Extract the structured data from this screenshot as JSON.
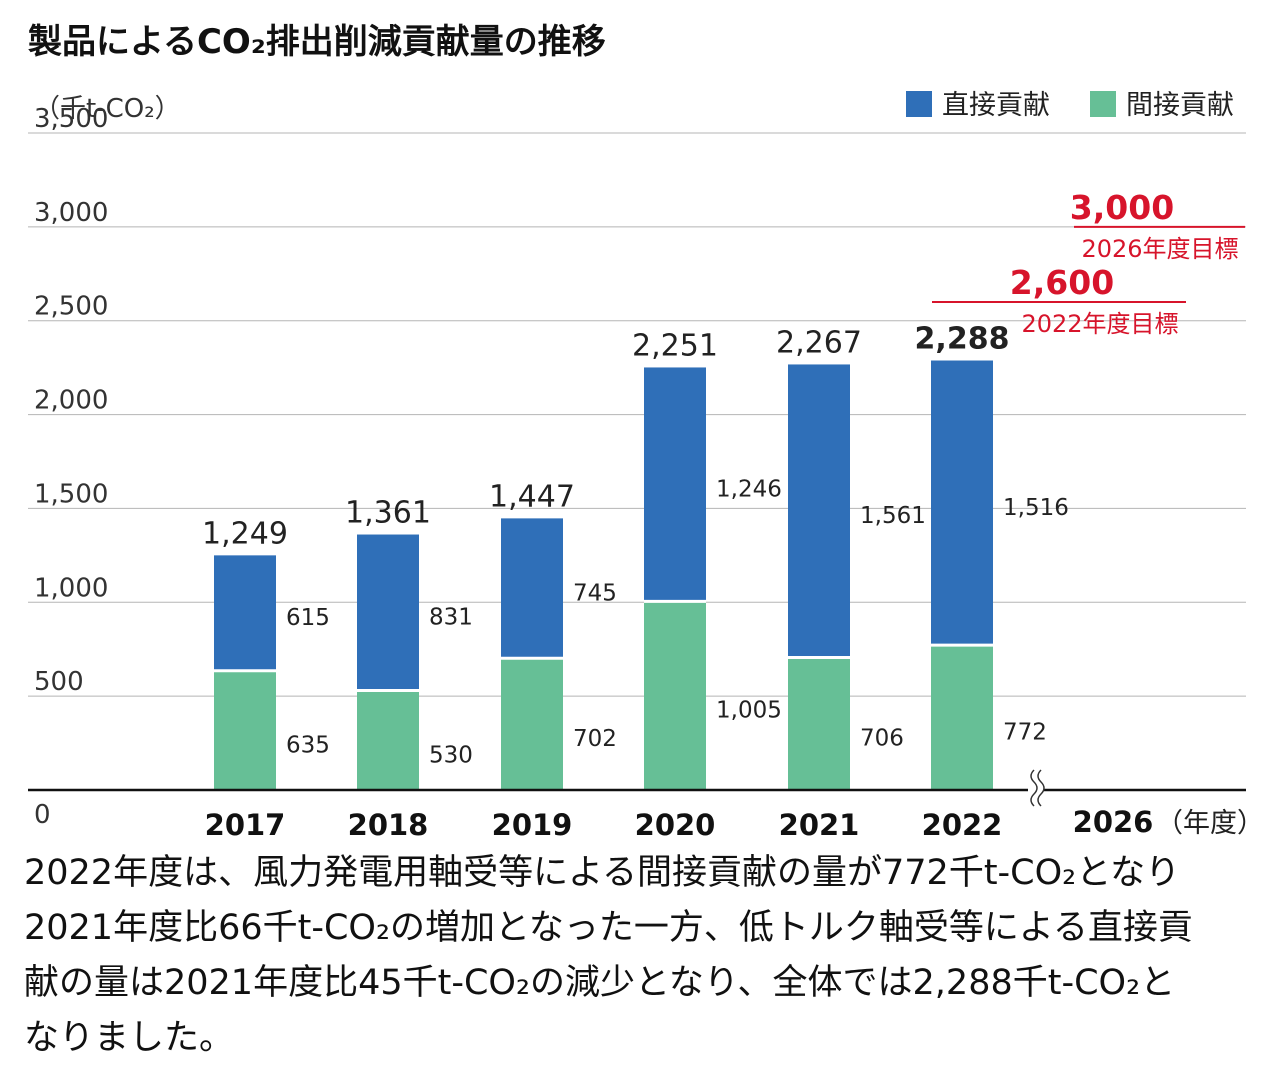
{
  "title": "製品によるCO₂排出削減貢献量の推移",
  "chart_data": {
    "type": "bar",
    "stacked": true,
    "unit_label": "（千t-CO₂）",
    "categories": [
      "2017",
      "2018",
      "2019",
      "2020",
      "2021",
      "2022"
    ],
    "extra_category": "2026",
    "x_unit_label": "（年度）",
    "ylim": [
      0,
      3500
    ],
    "yticks": [
      {
        "value": 0,
        "label": "0"
      },
      {
        "value": 500,
        "label": "500"
      },
      {
        "value": 1000,
        "label": "1,000"
      },
      {
        "value": 1500,
        "label": "1,500"
      },
      {
        "value": 2000,
        "label": "2,000"
      },
      {
        "value": 2500,
        "label": "2,500"
      },
      {
        "value": 3000,
        "label": "3,000"
      },
      {
        "value": 3500,
        "label": "3,500"
      }
    ],
    "series": [
      {
        "name": "間接貢献",
        "color": "#66bf96",
        "values": [
          635,
          530,
          702,
          1005,
          706,
          772
        ],
        "labels": [
          "635",
          "530",
          "702",
          "1,005",
          "706",
          "772"
        ]
      },
      {
        "name": "直接貢献",
        "color": "#2f6fb8",
        "values": [
          615,
          831,
          745,
          1246,
          1561,
          1516
        ],
        "labels": [
          "615",
          "831",
          "745",
          "1,246",
          "1,561",
          "1,516"
        ]
      }
    ],
    "totals": [
      1249,
      1361,
      1447,
      2251,
      2267,
      2288
    ],
    "total_labels": [
      "1,249",
      "1,361",
      "1,447",
      "2,251",
      "2,267",
      "2,288"
    ],
    "legend": [
      "直接貢献",
      "間接貢献"
    ],
    "targets": [
      {
        "value": 3000,
        "label": "3,000",
        "caption": "2026年度目標"
      },
      {
        "value": 2600,
        "label": "2,600",
        "caption": "2022年度目標"
      }
    ],
    "target_color": "#d7142b",
    "axis_break": true
  },
  "description": [
    "2022年度は、風力発電用軸受等による間接貢献の量が772千t-CO₂となり",
    "2021年度比66千t-CO₂の増加となった一方、低トルク軸受等による直接貢",
    "献の量は2021年度比45千t-CO₂の減少となり、全体では2,288千t-CO₂と",
    "なりました。"
  ]
}
